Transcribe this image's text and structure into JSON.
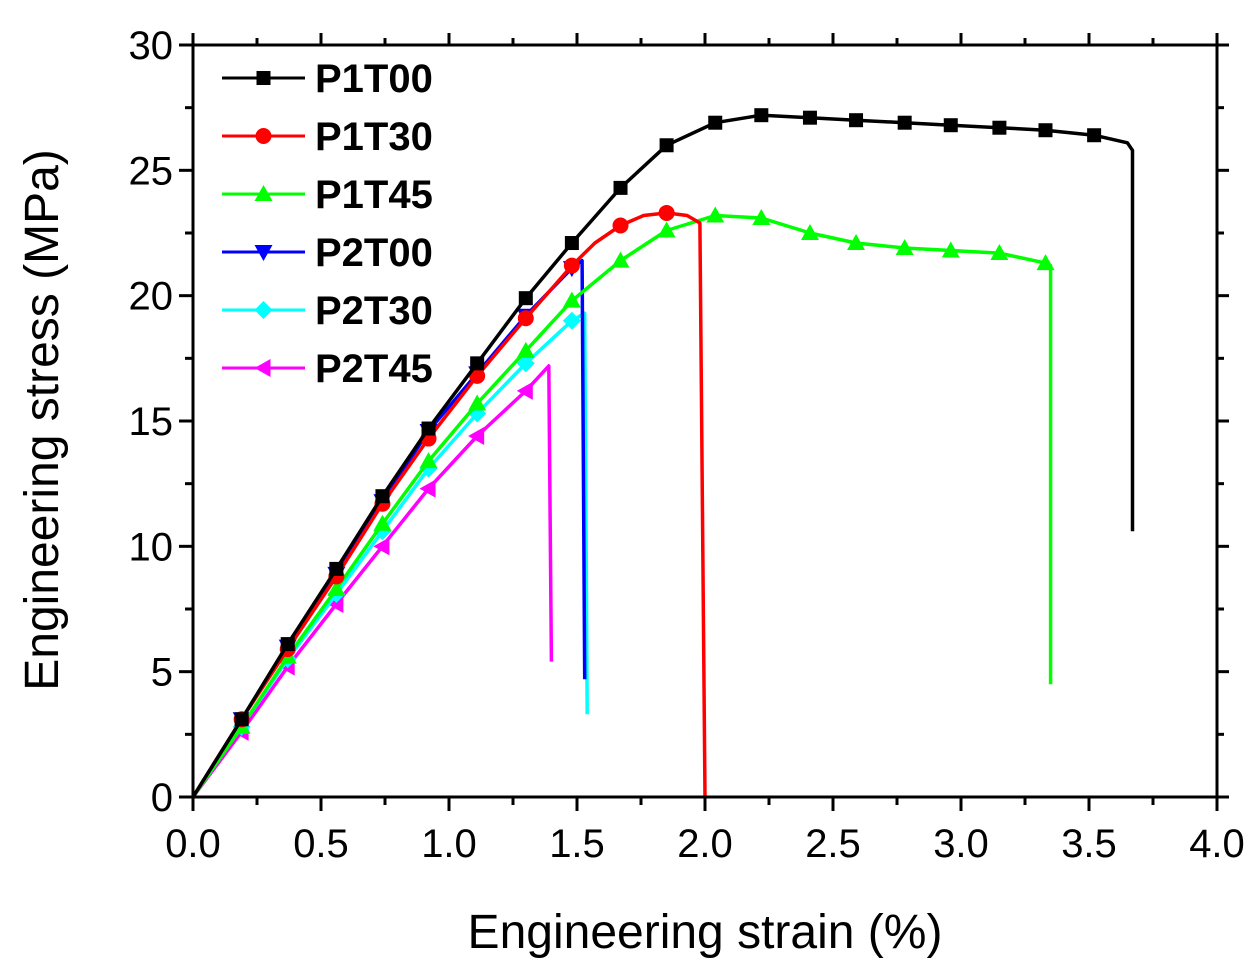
{
  "chart_data": {
    "type": "line",
    "title": "",
    "xlabel": "Engineering strain (%)",
    "ylabel": "Engineering stress (MPa)",
    "xlim": [
      0,
      4.0
    ],
    "ylim": [
      0,
      30
    ],
    "xticks": [
      0.0,
      0.5,
      1.0,
      1.5,
      2.0,
      2.5,
      3.0,
      3.5,
      4.0
    ],
    "xtick_labels": [
      "0.0",
      "0.5",
      "1.0",
      "1.5",
      "2.0",
      "2.5",
      "3.0",
      "3.5",
      "4.0"
    ],
    "yticks": [
      0,
      5,
      10,
      15,
      20,
      25,
      30
    ],
    "ytick_labels": [
      "0",
      "5",
      "10",
      "15",
      "20",
      "25",
      "30"
    ],
    "grid": false,
    "legend_position": "top-left",
    "series": [
      {
        "name": "P1T00",
        "color": "#000000",
        "marker": "square",
        "line": [
          [
            0,
            0
          ],
          [
            0.19,
            3.1
          ],
          [
            0.37,
            6.1
          ],
          [
            0.56,
            9.1
          ],
          [
            0.74,
            12.0
          ],
          [
            0.92,
            14.7
          ],
          [
            1.11,
            17.3
          ],
          [
            1.3,
            19.9
          ],
          [
            1.48,
            22.1
          ],
          [
            1.67,
            24.3
          ],
          [
            1.85,
            26.0
          ],
          [
            2.04,
            26.9
          ],
          [
            2.22,
            27.2
          ],
          [
            2.41,
            27.1
          ],
          [
            2.59,
            27.0
          ],
          [
            2.78,
            26.9
          ],
          [
            2.96,
            26.8
          ],
          [
            3.15,
            26.7
          ],
          [
            3.33,
            26.6
          ],
          [
            3.52,
            26.4
          ],
          [
            3.65,
            26.1
          ],
          [
            3.67,
            25.8
          ],
          [
            3.67,
            10.6
          ]
        ],
        "markers": [
          [
            0.19,
            3.1
          ],
          [
            0.37,
            6.1
          ],
          [
            0.56,
            9.1
          ],
          [
            0.74,
            12.0
          ],
          [
            0.92,
            14.7
          ],
          [
            1.11,
            17.3
          ],
          [
            1.3,
            19.9
          ],
          [
            1.48,
            22.1
          ],
          [
            1.67,
            24.3
          ],
          [
            1.85,
            26.0
          ],
          [
            2.04,
            26.9
          ],
          [
            2.22,
            27.2
          ],
          [
            2.41,
            27.1
          ],
          [
            2.59,
            27.0
          ],
          [
            2.78,
            26.9
          ],
          [
            2.96,
            26.8
          ],
          [
            3.15,
            26.7
          ],
          [
            3.33,
            26.6
          ],
          [
            3.52,
            26.4
          ]
        ]
      },
      {
        "name": "P1T30",
        "color": "#ff0000",
        "marker": "circle",
        "line": [
          [
            0,
            0
          ],
          [
            0.19,
            3.1
          ],
          [
            0.37,
            5.9
          ],
          [
            0.56,
            8.8
          ],
          [
            0.74,
            11.7
          ],
          [
            0.92,
            14.3
          ],
          [
            1.11,
            16.8
          ],
          [
            1.3,
            19.1
          ],
          [
            1.48,
            21.2
          ],
          [
            1.57,
            22.1
          ],
          [
            1.67,
            22.8
          ],
          [
            1.76,
            23.2
          ],
          [
            1.85,
            23.3
          ],
          [
            1.93,
            23.2
          ],
          [
            1.98,
            22.9
          ],
          [
            2.0,
            0
          ]
        ],
        "markers": [
          [
            0.19,
            3.1
          ],
          [
            0.37,
            5.9
          ],
          [
            0.56,
            8.8
          ],
          [
            0.74,
            11.7
          ],
          [
            0.92,
            14.3
          ],
          [
            1.11,
            16.8
          ],
          [
            1.3,
            19.1
          ],
          [
            1.48,
            21.2
          ],
          [
            1.67,
            22.8
          ],
          [
            1.85,
            23.3
          ]
        ]
      },
      {
        "name": "P1T45",
        "color": "#00ff00",
        "marker": "triangle-up",
        "line": [
          [
            0,
            0
          ],
          [
            0.19,
            2.8
          ],
          [
            0.37,
            5.6
          ],
          [
            0.56,
            8.3
          ],
          [
            0.74,
            10.9
          ],
          [
            0.92,
            13.4
          ],
          [
            1.11,
            15.7
          ],
          [
            1.3,
            17.8
          ],
          [
            1.48,
            19.8
          ],
          [
            1.67,
            21.4
          ],
          [
            1.85,
            22.6
          ],
          [
            2.04,
            23.2
          ],
          [
            2.22,
            23.1
          ],
          [
            2.41,
            22.5
          ],
          [
            2.59,
            22.1
          ],
          [
            2.78,
            21.9
          ],
          [
            2.96,
            21.8
          ],
          [
            3.15,
            21.7
          ],
          [
            3.33,
            21.3
          ],
          [
            3.35,
            21.2
          ],
          [
            3.35,
            4.5
          ]
        ],
        "markers": [
          [
            0.19,
            2.8
          ],
          [
            0.37,
            5.6
          ],
          [
            0.56,
            8.3
          ],
          [
            0.74,
            10.9
          ],
          [
            0.92,
            13.4
          ],
          [
            1.11,
            15.7
          ],
          [
            1.3,
            17.8
          ],
          [
            1.48,
            19.8
          ],
          [
            1.67,
            21.4
          ],
          [
            1.85,
            22.6
          ],
          [
            2.04,
            23.2
          ],
          [
            2.22,
            23.1
          ],
          [
            2.41,
            22.5
          ],
          [
            2.59,
            22.1
          ],
          [
            2.78,
            21.9
          ],
          [
            2.96,
            21.8
          ],
          [
            3.15,
            21.7
          ],
          [
            3.33,
            21.3
          ]
        ]
      },
      {
        "name": "P2T00",
        "color": "#0000ff",
        "marker": "triangle-down",
        "line": [
          [
            0,
            0
          ],
          [
            0.19,
            3.1
          ],
          [
            0.37,
            6.0
          ],
          [
            0.56,
            8.9
          ],
          [
            0.74,
            11.8
          ],
          [
            0.92,
            14.6
          ],
          [
            1.11,
            16.9
          ],
          [
            1.3,
            19.2
          ],
          [
            1.48,
            21.1
          ],
          [
            1.52,
            21.4
          ],
          [
            1.53,
            4.7
          ]
        ],
        "markers": [
          [
            0.19,
            3.1
          ],
          [
            0.37,
            6.0
          ],
          [
            0.56,
            8.9
          ],
          [
            0.74,
            11.8
          ],
          [
            0.92,
            14.6
          ],
          [
            1.11,
            16.9
          ],
          [
            1.3,
            19.2
          ],
          [
            1.48,
            21.1
          ]
        ]
      },
      {
        "name": "P2T30",
        "color": "#00ffff",
        "marker": "diamond",
        "line": [
          [
            0,
            0
          ],
          [
            0.19,
            2.8
          ],
          [
            0.37,
            5.5
          ],
          [
            0.56,
            8.1
          ],
          [
            0.74,
            10.6
          ],
          [
            0.92,
            13.1
          ],
          [
            1.11,
            15.3
          ],
          [
            1.3,
            17.3
          ],
          [
            1.48,
            19.0
          ],
          [
            1.53,
            19.3
          ],
          [
            1.54,
            3.3
          ]
        ],
        "markers": [
          [
            0.19,
            2.8
          ],
          [
            0.37,
            5.5
          ],
          [
            0.56,
            8.1
          ],
          [
            0.74,
            10.6
          ],
          [
            0.92,
            13.1
          ],
          [
            1.11,
            15.3
          ],
          [
            1.3,
            17.3
          ],
          [
            1.48,
            19.0
          ]
        ]
      },
      {
        "name": "P2T45",
        "color": "#ff00ff",
        "marker": "triangle-left",
        "line": [
          [
            0,
            0
          ],
          [
            0.19,
            2.6
          ],
          [
            0.37,
            5.2
          ],
          [
            0.56,
            7.7
          ],
          [
            0.74,
            10.0
          ],
          [
            0.92,
            12.3
          ],
          [
            1.11,
            14.4
          ],
          [
            1.3,
            16.2
          ],
          [
            1.39,
            17.2
          ],
          [
            1.4,
            5.4
          ]
        ],
        "markers": [
          [
            0.19,
            2.6
          ],
          [
            0.37,
            5.2
          ],
          [
            0.56,
            7.7
          ],
          [
            0.74,
            10.0
          ],
          [
            0.92,
            12.3
          ],
          [
            1.11,
            14.4
          ],
          [
            1.3,
            16.2
          ]
        ]
      }
    ]
  }
}
